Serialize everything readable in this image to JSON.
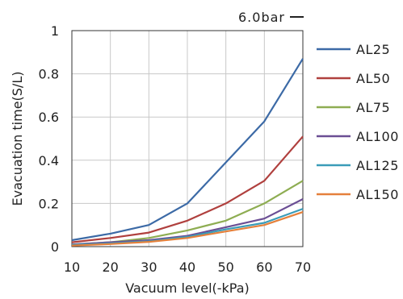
{
  "chart_data": {
    "type": "line",
    "annotation": "6.0bar",
    "xlabel": "Vacuum level(-kPa)",
    "ylabel": "Evacuation time(S/L)",
    "x": [
      10,
      20,
      30,
      40,
      50,
      60,
      70
    ],
    "xlim": [
      10,
      70
    ],
    "ylim": [
      0,
      1
    ],
    "x_ticks": [
      "10",
      "20",
      "30",
      "40",
      "50",
      "60",
      "70"
    ],
    "y_ticks": [
      {
        "value": 0,
        "label": "0"
      },
      {
        "value": 0.2,
        "label": "0.2"
      },
      {
        "value": 0.4,
        "label": "0.4"
      },
      {
        "value": 0.6,
        "label": "0.6"
      },
      {
        "value": 0.8,
        "label": "0.8"
      },
      {
        "value": 1,
        "label": "1"
      }
    ],
    "grid": true,
    "legend_position": "right",
    "series": [
      {
        "name": "AL25",
        "color": "#3c6aa6",
        "values": [
          0.03,
          0.06,
          0.1,
          0.2,
          0.39,
          0.58,
          0.87
        ]
      },
      {
        "name": "AL50",
        "color": "#b0403e",
        "values": [
          0.02,
          0.04,
          0.065,
          0.12,
          0.2,
          0.305,
          0.51
        ]
      },
      {
        "name": "AL75",
        "color": "#8ead52",
        "values": [
          0.01,
          0.02,
          0.04,
          0.075,
          0.12,
          0.2,
          0.305
        ]
      },
      {
        "name": "AL100",
        "color": "#6b4e94",
        "values": [
          0.01,
          0.02,
          0.03,
          0.05,
          0.09,
          0.13,
          0.22
        ]
      },
      {
        "name": "AL125",
        "color": "#3a9cb8",
        "values": [
          0.008,
          0.015,
          0.025,
          0.045,
          0.08,
          0.11,
          0.175
        ]
      },
      {
        "name": "AL150",
        "color": "#e5803b",
        "values": [
          0.005,
          0.012,
          0.022,
          0.04,
          0.07,
          0.1,
          0.16
        ]
      }
    ]
  }
}
